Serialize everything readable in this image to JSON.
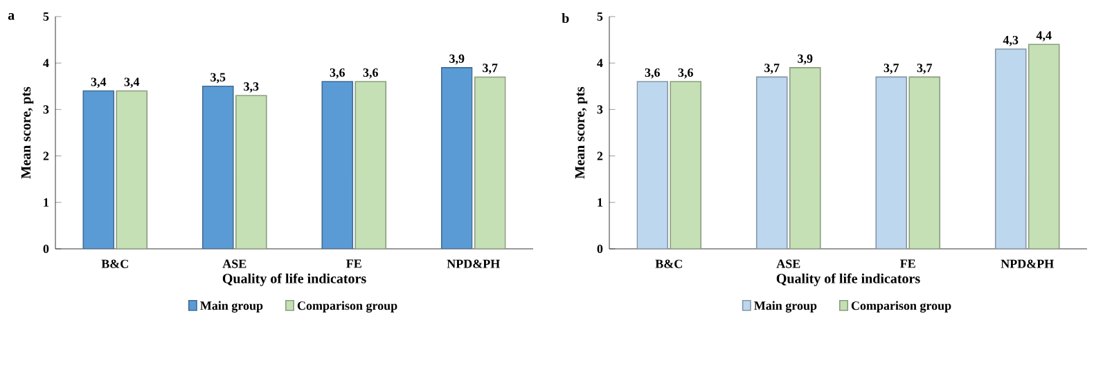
{
  "chart_data": [
    {
      "type": "bar",
      "title": "a",
      "xlabel": "Quality of life indicators",
      "ylabel": "Mean score, pts",
      "categories": [
        "B&C",
        "ASE",
        "FE",
        "NPD&PH"
      ],
      "ylim": [
        0,
        5
      ],
      "yticks": [
        0,
        1,
        2,
        3,
        4,
        5
      ],
      "legend": "bottom",
      "grid": false,
      "series": [
        {
          "name": "Main group",
          "color": "#5b9bd5",
          "values": [
            3.4,
            3.5,
            3.6,
            3.9
          ],
          "value_labels": [
            "3,4",
            "3,5",
            "3,6",
            "3,9"
          ]
        },
        {
          "name": "Comparison group",
          "color": "#c5e0b4",
          "values": [
            3.4,
            3.3,
            3.6,
            3.7
          ],
          "value_labels": [
            "3,4",
            "3,3",
            "3,6",
            "3,7"
          ]
        }
      ]
    },
    {
      "type": "bar",
      "title": "b",
      "xlabel": "Quality of life indicators",
      "ylabel": "Mean score, pts",
      "categories": [
        "B&C",
        "ASE",
        "FE",
        "NPD&PH"
      ],
      "ylim": [
        0,
        5
      ],
      "yticks": [
        0,
        1,
        2,
        3,
        4,
        5
      ],
      "legend": "bottom",
      "grid": false,
      "series": [
        {
          "name": "Main group",
          "color": "#bdd7ee",
          "values": [
            3.6,
            3.7,
            3.7,
            4.3
          ],
          "value_labels": [
            "3,6",
            "3,7",
            "3,7",
            "4,3"
          ]
        },
        {
          "name": "Comparison group",
          "color": "#c5e0b4",
          "values": [
            3.6,
            3.9,
            3.7,
            4.4
          ],
          "value_labels": [
            "3,6",
            "3,9",
            "3,7",
            "4,4"
          ]
        }
      ]
    }
  ]
}
